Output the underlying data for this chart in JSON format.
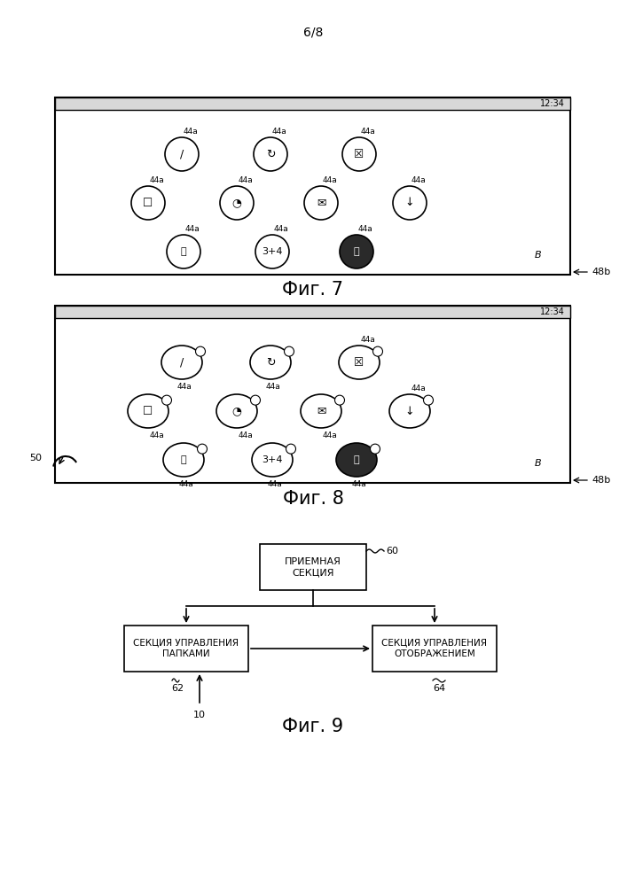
{
  "page_label": "6/8",
  "fig7_label": "Фиг. 7",
  "fig8_label": "Фиг. 8",
  "fig9_label": "Фиг. 9",
  "time_label": "12:34",
  "label_44a": "44a",
  "label_48b": "48b",
  "label_50": "50",
  "label_B": "B",
  "label_60": "60",
  "label_62": "62",
  "label_64": "64",
  "label_10": "10",
  "box_receive": "ПРИЕМНАЯ\nСЕКЦИЯ",
  "box_folder": "СЕКЦИЯ УПРАВЛЕНИЯ\nПАПКАМИ",
  "box_display": "СЕКЦИЯ УПРАВЛЕНИЯ\nОТОБРАЖЕНИЕМ",
  "bg_color": "#ffffff"
}
